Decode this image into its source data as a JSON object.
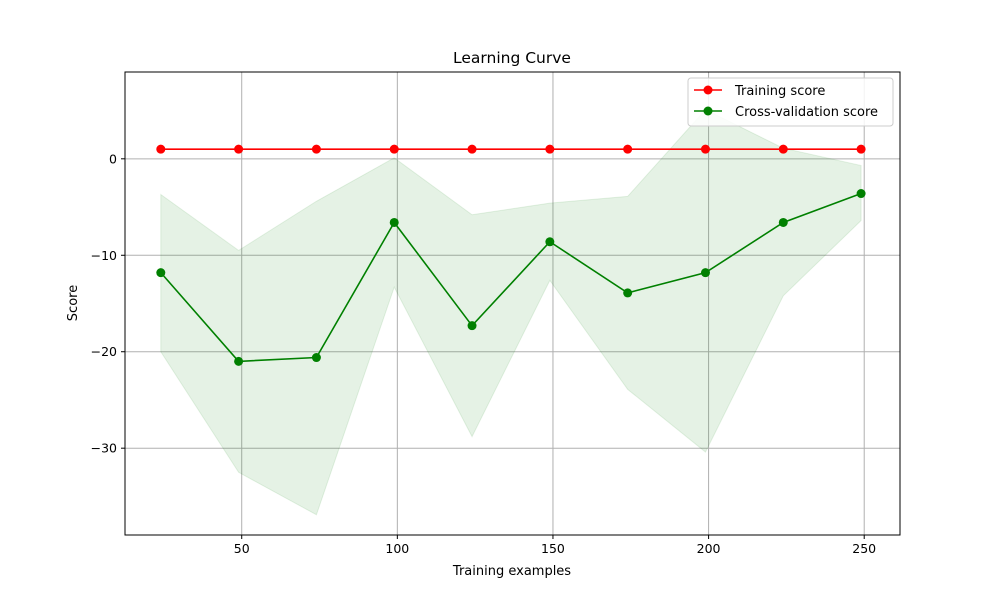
{
  "chart_data": {
    "type": "line",
    "title": "Learning Curve",
    "xlabel": "Training examples",
    "ylabel": "Score",
    "xlim": [
      12.5,
      261.5
    ],
    "ylim": [
      -39,
      9
    ],
    "xticks": [
      50,
      100,
      150,
      200,
      250
    ],
    "yticks": [
      0,
      -10,
      -20,
      -30
    ],
    "xtick_labels": [
      "50",
      "100",
      "150",
      "200",
      "250"
    ],
    "ytick_labels": [
      "0",
      "−10",
      "−20",
      "−30"
    ],
    "grid": true,
    "legend_position": "top-right",
    "x": [
      24,
      49,
      74,
      99,
      124,
      149,
      174,
      199,
      224,
      249
    ],
    "series": [
      {
        "name": "Training score",
        "color": "#ff0000",
        "values": [
          1,
          1,
          1,
          1,
          1,
          1,
          1,
          1,
          1,
          1
        ],
        "band_upper": [
          1,
          1,
          1,
          1,
          1,
          1,
          1,
          1,
          1,
          1
        ],
        "band_lower": [
          1,
          1,
          1,
          1,
          1,
          1,
          1,
          1,
          1,
          1
        ]
      },
      {
        "name": "Cross-validation score",
        "color": "#008000",
        "values": [
          -11.8,
          -21.0,
          -20.6,
          -6.6,
          -17.3,
          -8.6,
          -13.9,
          -11.8,
          -6.6,
          -3.6
        ],
        "band_upper": [
          -3.7,
          -9.5,
          -4.4,
          0.1,
          -5.8,
          -4.6,
          -3.9,
          5.1,
          1.1,
          -0.7
        ],
        "band_lower": [
          -20.0,
          -32.5,
          -36.9,
          -13.3,
          -28.8,
          -12.6,
          -23.9,
          -30.4,
          -14.2,
          -6.4
        ]
      }
    ]
  }
}
